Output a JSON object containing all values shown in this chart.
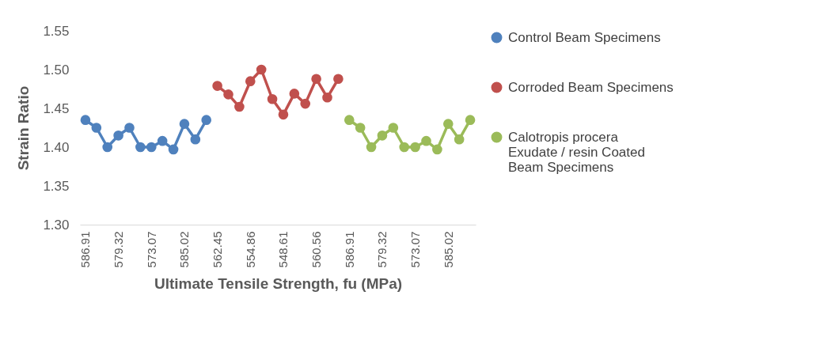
{
  "chart_data": {
    "type": "line",
    "xlabel": "Ultimate Tensile Strength, fu (MPa)",
    "ylabel": "Strain Ratio",
    "categories": [
      "586.91",
      null,
      null,
      "579.32",
      null,
      null,
      "573.07",
      null,
      null,
      "585.02",
      null,
      null,
      "562.45",
      null,
      null,
      "554.86",
      null,
      null,
      "548.61",
      null,
      null,
      "560.56",
      null,
      null,
      "586.91",
      null,
      null,
      "579.32",
      null,
      null,
      "573.07",
      null,
      null,
      "585.02",
      null,
      null
    ],
    "series": [
      {
        "name": "Control Beam Specimens",
        "color": "#4f81bd",
        "values": [
          1.435,
          1.425,
          1.4,
          1.415,
          1.425,
          1.4,
          1.4,
          1.408,
          1.397,
          1.43,
          1.41,
          1.435,
          null,
          null,
          null,
          null,
          null,
          null,
          null,
          null,
          null,
          null,
          null,
          null,
          null,
          null,
          null,
          null,
          null,
          null,
          null,
          null,
          null,
          null,
          null,
          null
        ]
      },
      {
        "name": "Corroded Beam Specimens",
        "color": "#c0504d",
        "values": [
          null,
          null,
          null,
          null,
          null,
          null,
          null,
          null,
          null,
          null,
          null,
          null,
          1.479,
          1.468,
          1.452,
          1.485,
          1.5,
          1.462,
          1.442,
          1.469,
          1.456,
          1.488,
          1.464,
          1.488,
          null,
          null,
          null,
          null,
          null,
          null,
          null,
          null,
          null,
          null,
          null,
          null
        ]
      },
      {
        "name": "Calotropis procera Exudate / resin   Coated Beam Specimens",
        "color": "#9bbb59",
        "values": [
          null,
          null,
          null,
          null,
          null,
          null,
          null,
          null,
          null,
          null,
          null,
          null,
          null,
          null,
          null,
          null,
          null,
          null,
          null,
          null,
          null,
          null,
          null,
          null,
          1.435,
          1.425,
          1.4,
          1.415,
          1.425,
          1.4,
          1.4,
          1.408,
          1.397,
          1.43,
          1.41,
          1.435
        ]
      }
    ],
    "ylim": [
      1.3,
      1.55
    ],
    "yticks": [
      {
        "value": 1.3,
        "label": "1.30"
      },
      1.35,
      {
        "value": 1.4,
        "label": "1.40"
      },
      1.45,
      {
        "value": 1.5,
        "label": "1.50"
      },
      1.55
    ],
    "grid": false,
    "legend": "right",
    "marker": "circle",
    "line_style": "solid"
  }
}
